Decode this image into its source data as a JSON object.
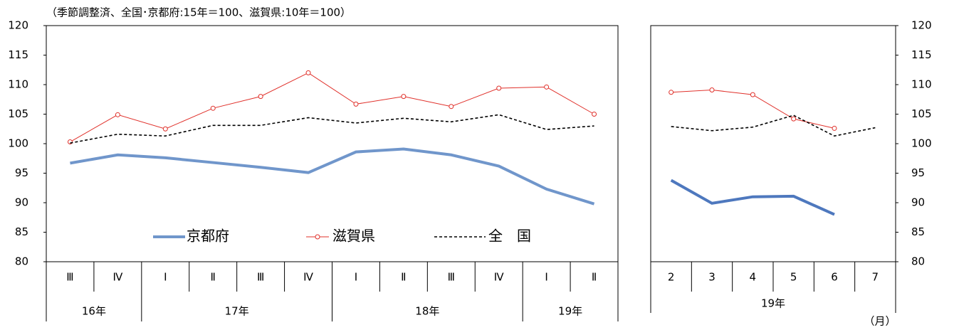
{
  "chart_data": [
    {
      "type": "line",
      "subtitle": "（季節調整済、全国･京都府:15年＝100、滋賀県:10年＝100）",
      "categories": [
        "Ⅲ",
        "Ⅳ",
        "Ⅰ",
        "Ⅱ",
        "Ⅲ",
        "Ⅳ",
        "Ⅰ",
        "Ⅱ",
        "Ⅲ",
        "Ⅳ",
        "Ⅰ",
        "Ⅱ"
      ],
      "groups": [
        {
          "label": "16年",
          "count": 2
        },
        {
          "label": "17年",
          "count": 4
        },
        {
          "label": "18年",
          "count": 4
        },
        {
          "label": "19年",
          "count": 2
        }
      ],
      "series": [
        {
          "name": "京都府",
          "color": "#7096cb",
          "values": [
            96.7,
            98.1,
            97.6,
            96.8,
            96.0,
            95.1,
            98.6,
            99.1,
            98.1,
            96.2,
            92.3,
            89.8
          ]
        },
        {
          "name": "滋賀県",
          "color": "#e0302a",
          "values": [
            100.3,
            104.9,
            102.5,
            106.0,
            108.0,
            112.0,
            106.7,
            108.0,
            106.3,
            109.4,
            109.6,
            105.0
          ]
        },
        {
          "name": "全　国",
          "color": "#000000",
          "values": [
            100.1,
            101.6,
            101.3,
            103.1,
            103.1,
            104.4,
            103.5,
            104.3,
            103.7,
            104.9,
            102.4,
            103.0
          ]
        }
      ],
      "ylim": [
        80,
        120
      ],
      "yticks": [
        80,
        85,
        90,
        95,
        100,
        105,
        110,
        115,
        120
      ],
      "legend": true
    },
    {
      "type": "line",
      "categories": [
        "2",
        "3",
        "4",
        "5",
        "6",
        "7"
      ],
      "groups": [
        {
          "label": "19年",
          "count": 6
        }
      ],
      "x_unit": "（月）",
      "series": [
        {
          "name": "京都府",
          "color": "#4e78be",
          "values": [
            93.8,
            89.9,
            91.0,
            91.1,
            88.0,
            null
          ]
        },
        {
          "name": "滋賀県",
          "color": "#e0302a",
          "values": [
            108.7,
            109.1,
            108.3,
            104.2,
            102.6,
            null
          ]
        },
        {
          "name": "全　国",
          "color": "#000000",
          "values": [
            102.9,
            102.2,
            102.8,
            104.8,
            101.3,
            102.7
          ]
        }
      ],
      "ylim": [
        80,
        120
      ],
      "yticks": [
        80,
        85,
        90,
        95,
        100,
        105,
        110,
        115,
        120
      ],
      "legend": false
    }
  ]
}
